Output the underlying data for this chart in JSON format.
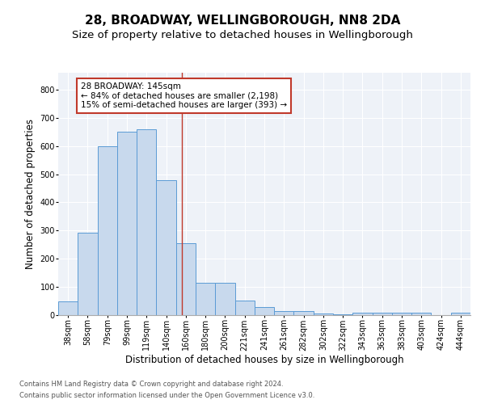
{
  "title": "28, BROADWAY, WELLINGBOROUGH, NN8 2DA",
  "subtitle": "Size of property relative to detached houses in Wellingborough",
  "xlabel": "Distribution of detached houses by size in Wellingborough",
  "ylabel": "Number of detached properties",
  "footnote1": "Contains HM Land Registry data © Crown copyright and database right 2024.",
  "footnote2": "Contains public sector information licensed under the Open Government Licence v3.0.",
  "bar_labels": [
    "38sqm",
    "58sqm",
    "79sqm",
    "99sqm",
    "119sqm",
    "140sqm",
    "160sqm",
    "180sqm",
    "200sqm",
    "221sqm",
    "241sqm",
    "261sqm",
    "282sqm",
    "302sqm",
    "322sqm",
    "343sqm",
    "363sqm",
    "383sqm",
    "403sqm",
    "424sqm",
    "444sqm"
  ],
  "bar_values": [
    48,
    293,
    600,
    650,
    660,
    480,
    254,
    115,
    115,
    53,
    28,
    15,
    15,
    7,
    4,
    8,
    8,
    8,
    8,
    1,
    10
  ],
  "bar_color": "#c8d9ed",
  "bar_edge_color": "#5b9bd5",
  "annotation_title": "28 BROADWAY: 145sqm",
  "annotation_line1": "← 84% of detached houses are smaller (2,198)",
  "annotation_line2": "15% of semi-detached houses are larger (393) →",
  "vline_x_index": 5.8,
  "vline_color": "#c0392b",
  "ylim": [
    0,
    860
  ],
  "yticks": [
    0,
    100,
    200,
    300,
    400,
    500,
    600,
    700,
    800
  ],
  "background_color": "#eef2f8",
  "title_fontsize": 11,
  "subtitle_fontsize": 9.5,
  "xlabel_fontsize": 8.5,
  "ylabel_fontsize": 8.5,
  "tick_fontsize": 7,
  "annotation_fontsize": 7.5,
  "footnote_fontsize": 6
}
